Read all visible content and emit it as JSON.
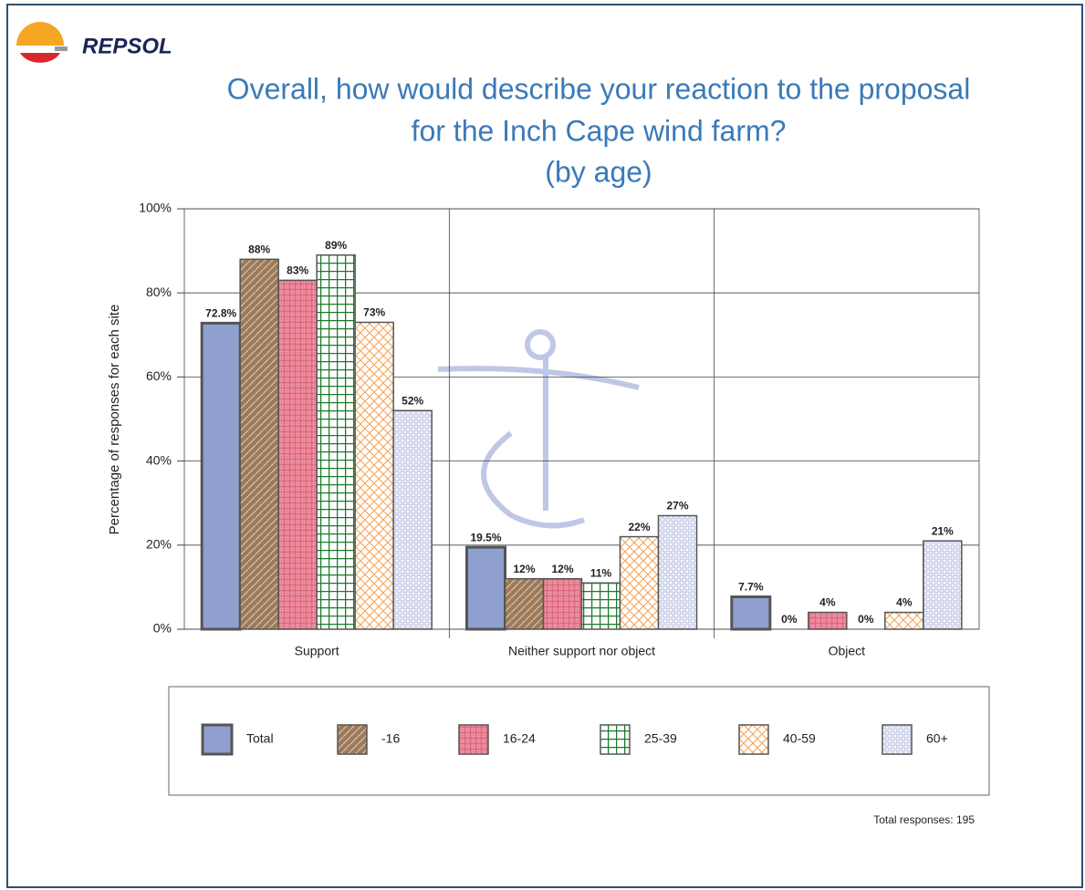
{
  "logo": "REPSOL",
  "chart_data": {
    "type": "bar",
    "title_lines": [
      "Overall, how would describe your reaction to the proposal",
      "for the Inch Cape wind farm?",
      "(by age)"
    ],
    "y_label": "Percentage of responses for each site",
    "categories": [
      "Support",
      "Neither support nor object",
      "Object"
    ],
    "series": [
      {
        "name": "Total",
        "color": "#8fa0cf",
        "pattern": "solid",
        "values": [
          72.8,
          19.5,
          7.7
        ],
        "value_labels": [
          "72.8%",
          "19.5%",
          "7.7%"
        ]
      },
      {
        "name": "-16",
        "color": "#9b7a5e",
        "pattern": "diagonal",
        "values": [
          88,
          12,
          0
        ],
        "value_labels": [
          "88%",
          "12%",
          "0%"
        ]
      },
      {
        "name": "16-24",
        "color": "#e06a80",
        "pattern": "dots",
        "values": [
          83,
          12,
          4
        ],
        "value_labels": [
          "83%",
          "12%",
          "4%"
        ]
      },
      {
        "name": "25-39",
        "color": "#1a7a2a",
        "pattern": "grid",
        "values": [
          89,
          11,
          0
        ],
        "value_labels": [
          "89%",
          "11%",
          "0%"
        ]
      },
      {
        "name": "40-59",
        "color": "#f5a050",
        "pattern": "cross",
        "values": [
          73,
          22,
          4
        ],
        "value_labels": [
          "73%",
          "22%",
          "4%"
        ]
      },
      {
        "name": "60+",
        "color": "#a0a8d8",
        "pattern": "squares",
        "values": [
          52,
          27,
          21
        ],
        "value_labels": [
          "52%",
          "27%",
          "21%"
        ]
      }
    ],
    "ylim": [
      0,
      100
    ],
    "yticks": [
      {
        "value": 0,
        "label": "0%"
      },
      {
        "value": 20,
        "label": "20%"
      },
      {
        "value": 40,
        "label": "40%"
      },
      {
        "value": 60,
        "label": "60%"
      },
      {
        "value": 80,
        "label": "80%"
      },
      {
        "value": 100,
        "label": "100%"
      }
    ],
    "grid": true,
    "note": "Total responses: 195"
  }
}
